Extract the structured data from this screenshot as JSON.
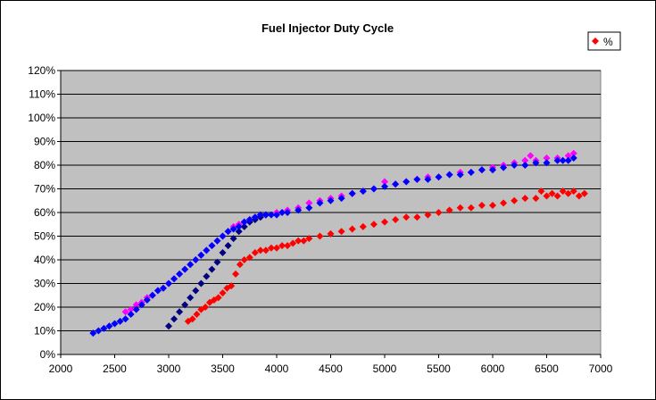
{
  "chart_data": {
    "type": "scatter",
    "title": "Fuel Injector Duty Cycle",
    "xlabel": "",
    "ylabel": "",
    "xlim": [
      2000,
      7000
    ],
    "ylim": [
      0,
      1.2
    ],
    "x_ticks": [
      2000,
      2500,
      3000,
      3500,
      4000,
      4500,
      5000,
      5500,
      6000,
      6500,
      7000
    ],
    "y_ticks": [
      0,
      0.1,
      0.2,
      0.3,
      0.4,
      0.5,
      0.6,
      0.7,
      0.8,
      0.9,
      1.0,
      1.1,
      1.2
    ],
    "x_tick_labels": [
      "2000",
      "2500",
      "3000",
      "3500",
      "4000",
      "4500",
      "5000",
      "5500",
      "6000",
      "6500",
      "7000"
    ],
    "y_tick_labels": [
      "0%",
      "10%",
      "20%",
      "30%",
      "40%",
      "50%",
      "60%",
      "70%",
      "80%",
      "90%",
      "100%",
      "110%",
      "120%"
    ],
    "grid": "horizontal",
    "plot_background": "#c0c0c0",
    "legend_position": "top-right",
    "legend_entries": [
      {
        "label": "%",
        "color": "#ff0000"
      }
    ],
    "series": [
      {
        "color": "#ff00ff",
        "x": [
          2600,
          2650,
          2700,
          2750,
          2800,
          2850,
          2900,
          2950,
          3000,
          3050,
          3100,
          3150,
          3200,
          3250,
          3300,
          3350,
          3400,
          3450,
          3500,
          3550,
          3600,
          3650,
          3700,
          3750,
          3800,
          3850,
          3900,
          4000,
          4100,
          4200,
          4300,
          4400,
          4500,
          4600,
          4700,
          4800,
          4900,
          5000,
          5100,
          5200,
          5300,
          5400,
          5500,
          5600,
          5700,
          5800,
          5900,
          6000,
          6100,
          6200,
          6300,
          6350,
          6400,
          6500,
          6600,
          6700,
          6750
        ],
        "y": [
          0.18,
          0.19,
          0.21,
          0.22,
          0.24,
          0.25,
          0.27,
          0.28,
          0.3,
          0.32,
          0.34,
          0.36,
          0.38,
          0.4,
          0.42,
          0.44,
          0.46,
          0.48,
          0.5,
          0.52,
          0.54,
          0.55,
          0.56,
          0.57,
          0.58,
          0.59,
          0.59,
          0.6,
          0.61,
          0.62,
          0.64,
          0.65,
          0.66,
          0.67,
          0.68,
          0.69,
          0.7,
          0.73,
          0.72,
          0.73,
          0.74,
          0.75,
          0.75,
          0.76,
          0.77,
          0.77,
          0.78,
          0.79,
          0.8,
          0.81,
          0.82,
          0.84,
          0.82,
          0.83,
          0.83,
          0.84,
          0.85
        ]
      },
      {
        "color": "#ff0000",
        "x": [
          3180,
          3220,
          3260,
          3300,
          3340,
          3380,
          3420,
          3460,
          3500,
          3540,
          3580,
          3620,
          3660,
          3700,
          3750,
          3800,
          3850,
          3900,
          3950,
          4000,
          4050,
          4100,
          4150,
          4200,
          4250,
          4300,
          4400,
          4500,
          4600,
          4700,
          4800,
          4900,
          5000,
          5100,
          5200,
          5300,
          5400,
          5500,
          5600,
          5700,
          5800,
          5900,
          6000,
          6100,
          6200,
          6300,
          6400,
          6450,
          6500,
          6550,
          6600,
          6650,
          6700,
          6750,
          6800,
          6850
        ],
        "y": [
          0.14,
          0.15,
          0.17,
          0.19,
          0.2,
          0.22,
          0.23,
          0.24,
          0.26,
          0.28,
          0.29,
          0.34,
          0.38,
          0.4,
          0.41,
          0.43,
          0.44,
          0.44,
          0.45,
          0.45,
          0.46,
          0.46,
          0.47,
          0.48,
          0.48,
          0.49,
          0.5,
          0.51,
          0.52,
          0.53,
          0.54,
          0.55,
          0.56,
          0.57,
          0.58,
          0.58,
          0.59,
          0.6,
          0.61,
          0.62,
          0.62,
          0.63,
          0.63,
          0.64,
          0.65,
          0.66,
          0.66,
          0.69,
          0.67,
          0.68,
          0.67,
          0.69,
          0.68,
          0.69,
          0.67,
          0.68
        ]
      },
      {
        "color": "#000080",
        "x": [
          3000,
          3050,
          3100,
          3150,
          3200,
          3250,
          3300,
          3350,
          3400,
          3450,
          3500,
          3550,
          3600,
          3650,
          3700,
          3750,
          3800,
          3850,
          3900
        ],
        "y": [
          0.12,
          0.15,
          0.18,
          0.21,
          0.24,
          0.27,
          0.3,
          0.33,
          0.36,
          0.39,
          0.43,
          0.46,
          0.49,
          0.52,
          0.54,
          0.56,
          0.57,
          0.58,
          0.59
        ]
      },
      {
        "color": "#0000ff",
        "x": [
          2300,
          2350,
          2400,
          2450,
          2500,
          2550,
          2600,
          2650,
          2700,
          2750,
          2800,
          2850,
          2900,
          2950,
          3000,
          3050,
          3100,
          3150,
          3200,
          3250,
          3300,
          3350,
          3400,
          3450,
          3500,
          3550,
          3600,
          3650,
          3700,
          3750,
          3800,
          3850,
          3900,
          3950,
          4000,
          4050,
          4100,
          4200,
          4300,
          4400,
          4500,
          4600,
          4700,
          4800,
          4900,
          5000,
          5100,
          5200,
          5300,
          5400,
          5500,
          5600,
          5700,
          5800,
          5900,
          6000,
          6100,
          6200,
          6300,
          6400,
          6500,
          6600,
          6650,
          6700,
          6750
        ],
        "y": [
          0.09,
          0.1,
          0.11,
          0.12,
          0.13,
          0.14,
          0.15,
          0.17,
          0.19,
          0.21,
          0.23,
          0.25,
          0.27,
          0.28,
          0.3,
          0.32,
          0.34,
          0.36,
          0.38,
          0.4,
          0.42,
          0.44,
          0.46,
          0.48,
          0.5,
          0.52,
          0.53,
          0.54,
          0.56,
          0.57,
          0.58,
          0.59,
          0.59,
          0.59,
          0.59,
          0.6,
          0.6,
          0.61,
          0.62,
          0.64,
          0.65,
          0.66,
          0.68,
          0.69,
          0.7,
          0.71,
          0.72,
          0.73,
          0.74,
          0.74,
          0.75,
          0.76,
          0.76,
          0.77,
          0.78,
          0.78,
          0.79,
          0.8,
          0.8,
          0.81,
          0.81,
          0.82,
          0.82,
          0.82,
          0.83
        ]
      }
    ]
  }
}
